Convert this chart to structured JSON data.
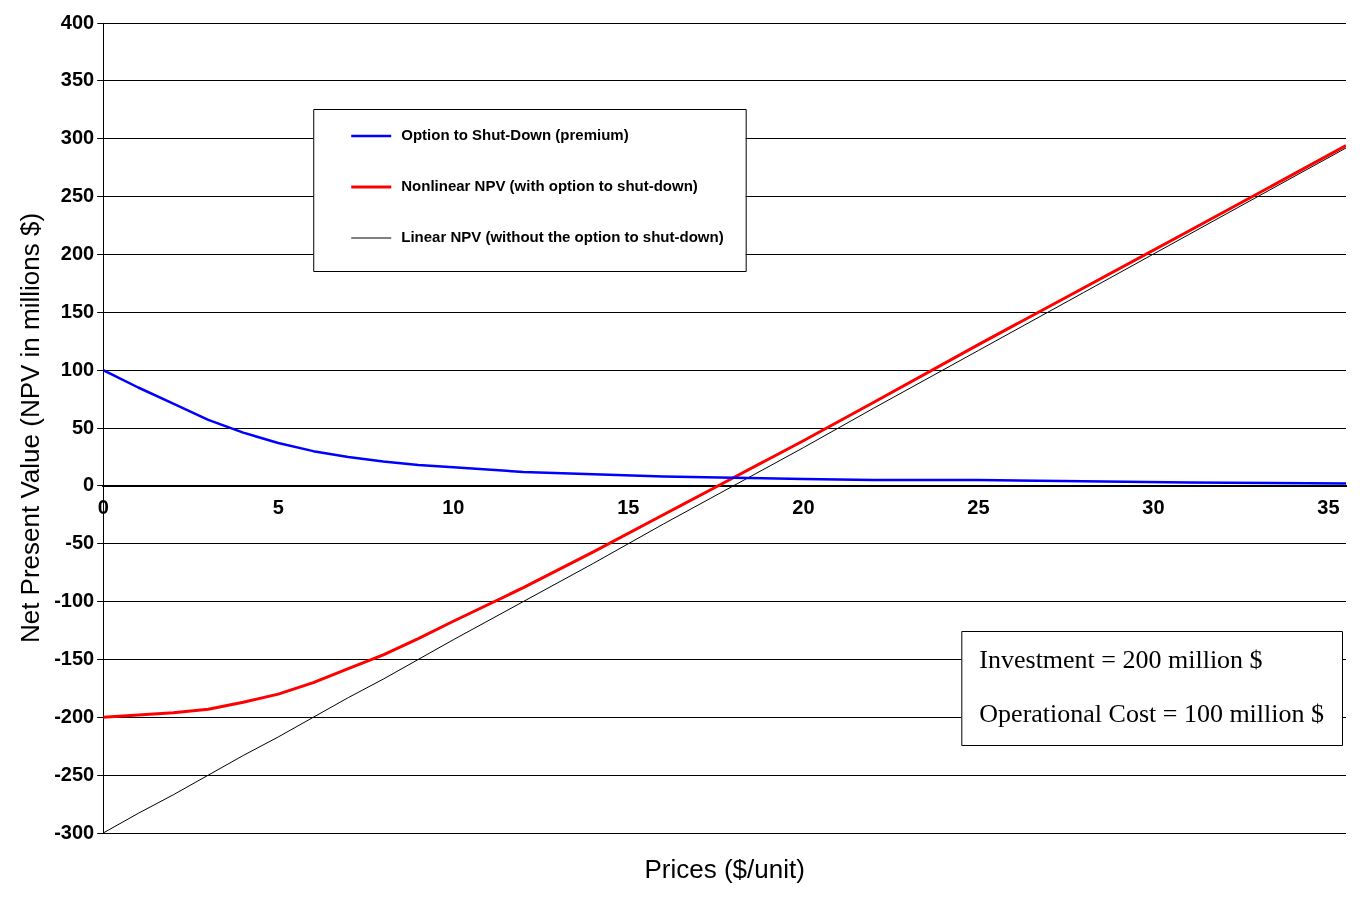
{
  "chart_data": {
    "type": "line",
    "xlabel": "Prices ($/unit)",
    "ylabel": "Net Present Value (NPV in millions $)",
    "x": [
      0,
      1,
      2,
      3,
      4,
      5,
      6,
      7,
      8,
      9,
      10,
      12,
      14,
      16,
      18,
      20,
      22,
      25,
      28,
      31,
      35.5
    ],
    "series": [
      {
        "name": "Option to Shut-Down (premium)",
        "color": "#0000ff",
        "values": [
          100,
          85,
          71,
          57,
          46,
          37,
          30,
          25,
          21,
          18,
          16,
          12,
          10,
          8,
          7,
          6,
          5,
          5,
          4,
          3,
          2
        ]
      },
      {
        "name": "Nonlinear NPV (with option to shut-down)",
        "color": "#ff0000",
        "values": [
          -200,
          -198,
          -196,
          -193,
          -187,
          -180,
          -170,
          -158,
          -146,
          -132,
          -117,
          -88,
          -57,
          -25,
          7,
          39,
          72,
          122,
          171,
          220,
          294
        ]
      },
      {
        "name": "Linear NPV (without the option to shut-down)",
        "color": "#000000",
        "values": [
          -300,
          -283,
          -267,
          -250,
          -233,
          -217,
          -200,
          -183,
          -167,
          -150,
          -133,
          -100,
          -67,
          -33,
          0,
          33,
          67,
          117,
          167,
          217,
          292
        ]
      }
    ],
    "xlim": [
      0,
      35.5
    ],
    "xticks": [
      0,
      5,
      10,
      15,
      20,
      25,
      30,
      35
    ],
    "ylim": [
      -300,
      400
    ],
    "yticks": [
      -300,
      -250,
      -200,
      -150,
      -100,
      -50,
      0,
      50,
      100,
      150,
      200,
      250,
      300,
      350,
      400
    ],
    "grid": "y",
    "legend": "top",
    "marker": "none",
    "line_style": "solid",
    "annotations": [
      "Investment = 200 million $",
      "Operational Cost = 100 million $"
    ]
  }
}
